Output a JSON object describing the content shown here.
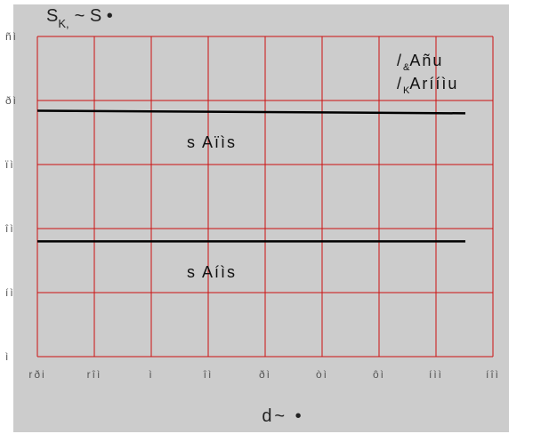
{
  "chart_data": {
    "type": "line",
    "ylabel_main": "S",
    "ylabel_sub": "K,",
    "ylabel_rest": "~ S •",
    "xlabel": "d~ •",
    "x_ticks": [
      "rði",
      "rîì",
      "ì",
      "îì",
      "ðì",
      "òì",
      "ôì",
      "íìì",
      "íîì"
    ],
    "y_ticks": [
      "ñì",
      "ðì",
      "ïì",
      "îì",
      "íì",
      "ì"
    ],
    "grid": true,
    "series": [
      {
        "values": [
          38.4,
          38.0
        ]
      },
      {
        "values": [
          18.0,
          18.0
        ]
      }
    ],
    "annotations": [
      "s Aïìs",
      "s Aíìs"
    ],
    "legend": [
      {
        "sub": "&",
        "text": "Añu"
      },
      {
        "sub": "K",
        "text": "Arííìu"
      }
    ],
    "colors": {
      "grid": "#cc1111",
      "plot_bg": "#cccccc",
      "line": "#000000"
    }
  }
}
